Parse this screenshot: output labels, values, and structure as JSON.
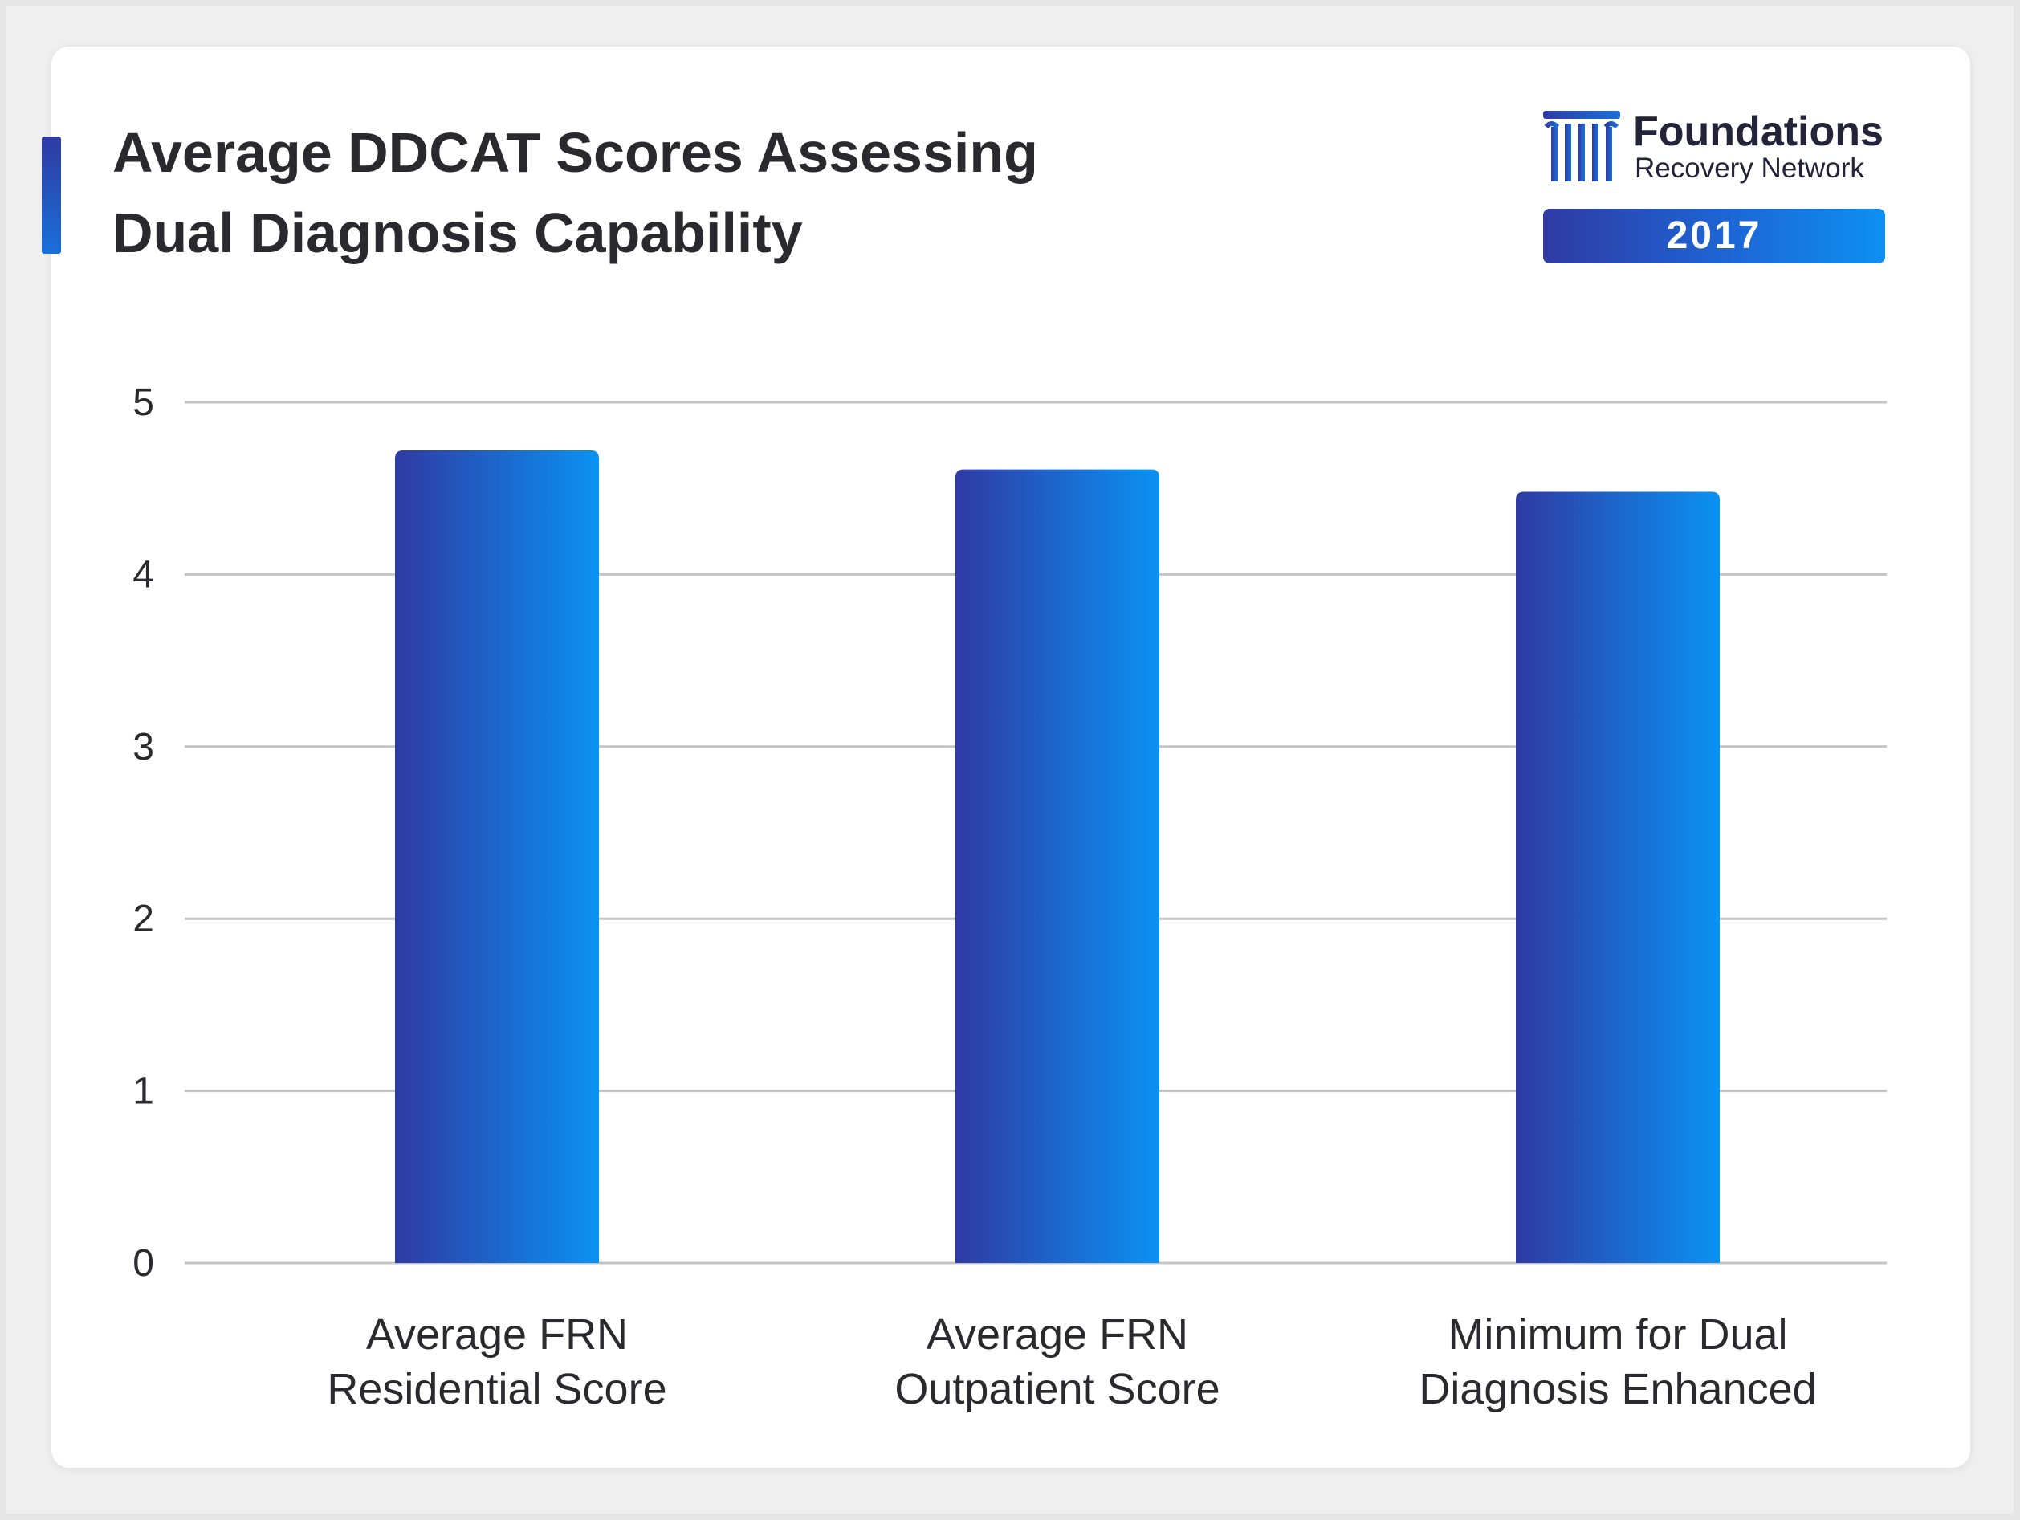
{
  "header": {
    "title_line1": "Average DDCAT Scores Assessing",
    "title_line2": "Dual Diagnosis Capability"
  },
  "logo": {
    "icon": "pillar-columns-icon",
    "name": "Foundations",
    "subtitle": "Recovery Network",
    "year": "2017"
  },
  "colors": {
    "bar_gradient_start": "#2f3aa3",
    "bar_gradient_end": "#0a92f3",
    "grid": "#c4c4c4",
    "text": "#2a2a2e"
  },
  "chart_data": {
    "type": "bar",
    "categories": [
      [
        "Average FRN",
        "Residential Score"
      ],
      [
        "Average FRN",
        "Outpatient Score"
      ],
      [
        "Minimum for Dual",
        "Diagnosis Enhanced"
      ]
    ],
    "values": [
      4.72,
      4.61,
      4.48
    ],
    "ylim": [
      0,
      5
    ],
    "yticks": [
      0,
      1,
      2,
      3,
      4,
      5
    ],
    "grid": true,
    "legend": "none"
  }
}
